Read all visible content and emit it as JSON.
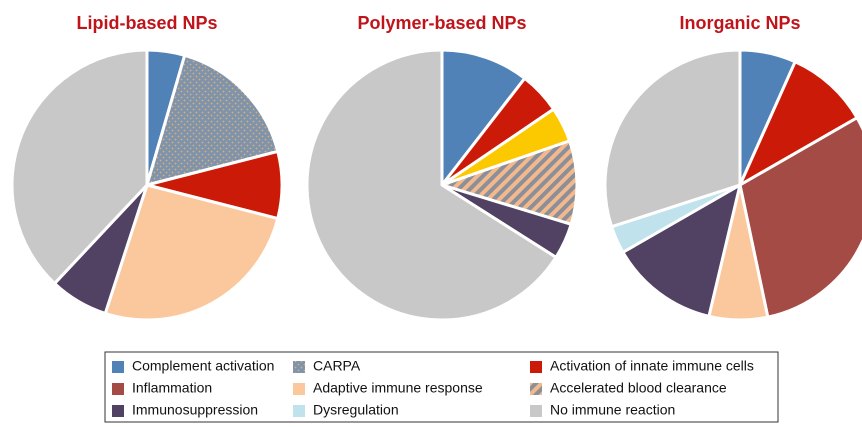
{
  "chart_data": [
    {
      "type": "pie",
      "title": "Lipid-based NPs",
      "categories": [
        "Complement activation",
        "CARPA",
        "Activation of innate immune cells",
        "Adaptive immune response",
        "Immunosuppression",
        "No immune reaction"
      ],
      "values": [
        4.5,
        16.5,
        8,
        26,
        7,
        38
      ],
      "colors": [
        "#5082b8",
        "#7f93aa",
        "#cc1a08",
        "#fbc89e",
        "#514163",
        "#c8c8c8"
      ],
      "hatch": [
        null,
        "dots",
        null,
        null,
        null,
        null
      ]
    },
    {
      "type": "pie",
      "title": "Polymer-based NPs",
      "categories": [
        "Complement activation",
        "Activation of innate immune cells",
        null,
        "Accelerated blood clearance",
        "Immunosuppression",
        "No immune reaction"
      ],
      "values": [
        10.5,
        5,
        4.2,
        10,
        4.3,
        66
      ],
      "colors": [
        "#5082b8",
        "#cc1a08",
        "#fcc800",
        "#f3b88c",
        "#514163",
        "#c8c8c8"
      ],
      "hatch": [
        null,
        null,
        null,
        "stripes",
        null,
        null
      ]
    },
    {
      "type": "pie",
      "title": "Inorganic NPs",
      "categories": [
        "Complement activation",
        "Activation of innate immune cells",
        "Inflammation",
        "Adaptive immune response",
        "Immunosuppression",
        "Dysregulation",
        "No immune reaction"
      ],
      "values": [
        6.7,
        10,
        30,
        7,
        13,
        3.3,
        30
      ],
      "colors": [
        "#5082b8",
        "#cc1a08",
        "#a54b45",
        "#fbc89e",
        "#514163",
        "#bfe2ec",
        "#c8c8c8"
      ],
      "hatch": [
        null,
        null,
        null,
        null,
        null,
        null,
        null
      ]
    }
  ],
  "legend": [
    {
      "name": "Complement activation",
      "color": "#5082b8",
      "hatch": null
    },
    {
      "name": "CARPA",
      "color": "#7f93aa",
      "hatch": "dots"
    },
    {
      "name": "Activation of innate immune cells",
      "color": "#cc1a08",
      "hatch": null
    },
    {
      "name": "Inflammation",
      "color": "#a54b45",
      "hatch": null
    },
    {
      "name": "Adaptive immune response",
      "color": "#fbc89e",
      "hatch": null
    },
    {
      "name": "Accelerated blood clearance",
      "color": "#f3b88c",
      "hatch": "stripes"
    },
    {
      "name": "Immunosuppression",
      "color": "#514163",
      "hatch": null
    },
    {
      "name": "Dysregulation",
      "color": "#bfe2ec",
      "hatch": null
    },
    {
      "name": "No immune reaction",
      "color": "#c8c8c8",
      "hatch": null
    }
  ]
}
